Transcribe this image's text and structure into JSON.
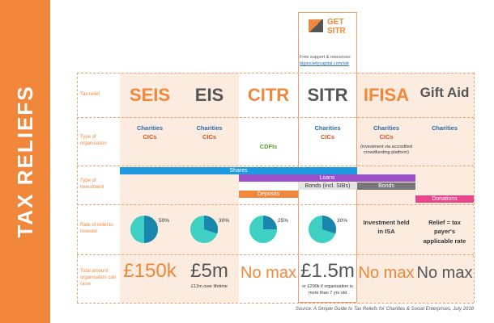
{
  "sidebar": {
    "title": "TAX RELIEFS"
  },
  "logo": {
    "line1": "GET",
    "line2": "SITR",
    "support": "Free support & resources:",
    "url": "bigsocietycapital.com/sitr"
  },
  "table": {
    "row_labels": [
      "Tax relief",
      "Type of organisation",
      "Type of Investment",
      "Rate of relief to Investor",
      "Total amount organisation can raise"
    ],
    "columns": [
      {
        "name": "SEIS",
        "org": [
          "Charities",
          "CICs"
        ],
        "rate": {
          "value": 50,
          "label": "50%"
        },
        "amount": "£150k"
      },
      {
        "name": "EIS",
        "org": [
          "Charities",
          "CICs"
        ],
        "rate": {
          "value": 30,
          "label": "30%"
        },
        "amount": "£5m",
        "amount_note": "£12m over lifetime"
      },
      {
        "name": "CITR",
        "org": [
          "CDFIs"
        ],
        "rate": {
          "value": 25,
          "label": "25%"
        },
        "amount": "No max"
      },
      {
        "name": "SITR",
        "org": [
          "Charities",
          "CICs"
        ],
        "rate": {
          "value": 30,
          "label": "30%"
        },
        "amount": "£1.5m",
        "amount_note": "or £290k if organisation is more than 7 yrs old"
      },
      {
        "name": "IFISA",
        "org": [
          "Charities",
          "CICs"
        ],
        "org_note": "(investment via accredited crowdfunding platform)",
        "rate_text": "Investment held in ISA",
        "amount": "No max"
      },
      {
        "name": "Gift Aid",
        "org": [
          "Charities"
        ],
        "rate_text": "Relief = tax payer's applicable rate",
        "amount": "No max"
      }
    ],
    "investments": [
      "Shares",
      "Loans",
      "Bonds (incl. SIBs)",
      "Bonds",
      "Deposits",
      "Donations"
    ]
  },
  "source": "Source: A Simple Guide to Tax Reliefs for Charities & Social Enterprises, July 2018"
}
